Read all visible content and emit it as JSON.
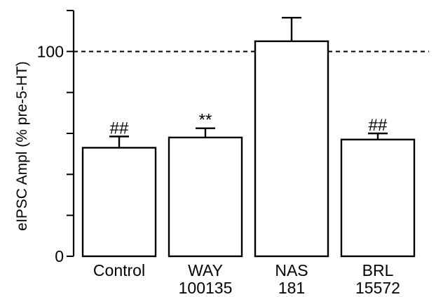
{
  "chart_data": {
    "type": "bar",
    "title": "",
    "xlabel": "",
    "ylabel": "eIPSC Ampl (% pre-5-HT)",
    "ylim": [
      0,
      120
    ],
    "yticks": [
      0,
      100
    ],
    "ytick_labels": [
      "0",
      "100"
    ],
    "reference_line": {
      "value": 100,
      "style": "dashed"
    },
    "categories": [
      {
        "line1": "Control",
        "line2": ""
      },
      {
        "line1": "WAY",
        "line2": "100135"
      },
      {
        "line1": "NAS",
        "line2": "181"
      },
      {
        "line1": "BRL",
        "line2": "15572"
      }
    ],
    "values": [
      53,
      58,
      105,
      57
    ],
    "errors": [
      5.5,
      4.5,
      11.5,
      3
    ],
    "significance": [
      "##",
      "**",
      "",
      "##"
    ],
    "colors": {
      "bar_fill": "#ffffff",
      "bar_edge": "#000000"
    }
  }
}
